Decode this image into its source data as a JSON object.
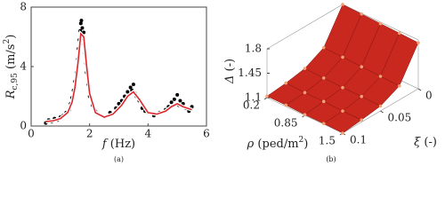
{
  "chart_data": [
    {
      "type": "scatter_line",
      "caption": "(a)",
      "xlabel": [
        {
          "text": "f",
          "style": "italic"
        },
        {
          "text": " (Hz)",
          "style": "normal"
        }
      ],
      "ylabel": [
        {
          "text": "R",
          "style": "italic"
        },
        {
          "text": "c,95",
          "style": "sub"
        },
        {
          "text": " (m/s",
          "style": "normal"
        },
        {
          "text": "2",
          "style": "sup"
        },
        {
          "text": ")",
          "style": "normal"
        }
      ],
      "xlim": [
        0,
        6
      ],
      "xticks": [
        0,
        2,
        4,
        6
      ],
      "ylim": [
        0,
        8
      ],
      "yticks": [
        0,
        4,
        8
      ],
      "points": {
        "color": "#000000",
        "x": [
          0.5,
          0.6,
          0.7,
          0.8,
          0.9,
          1.0,
          1.1,
          1.2,
          1.3,
          1.35,
          1.4,
          1.45,
          1.5,
          1.55,
          1.6,
          1.62,
          1.65,
          1.68,
          1.7,
          1.72,
          1.75,
          1.78,
          1.8,
          1.82,
          1.85,
          1.88,
          1.9,
          1.95,
          2.0,
          2.1,
          2.2,
          2.3,
          2.5,
          2.7,
          2.9,
          3.0,
          3.1,
          3.2,
          3.3,
          3.4,
          3.45,
          3.5,
          3.55,
          3.6,
          3.7,
          3.8,
          3.9,
          4.0,
          4.2,
          4.4,
          4.6,
          4.7,
          4.8,
          4.9,
          5.0,
          5.05,
          5.1,
          5.2,
          5.3,
          5.4,
          5.5
        ],
        "y": [
          0.2,
          0.4,
          0.3,
          0.5,
          0.4,
          0.6,
          0.7,
          0.9,
          1.1,
          1.5,
          1.9,
          2.4,
          3.0,
          3.6,
          4.5,
          5.2,
          5.8,
          6.4,
          6.9,
          7.1,
          6.6,
          5.9,
          6.3,
          5.5,
          4.9,
          4.2,
          3.6,
          2.8,
          2.0,
          1.4,
          1.0,
          0.8,
          0.6,
          0.9,
          1.2,
          1.5,
          1.7,
          2.0,
          2.3,
          2.6,
          2.4,
          2.8,
          2.2,
          2.0,
          1.7,
          1.2,
          1.0,
          0.9,
          0.7,
          0.9,
          1.1,
          1.3,
          1.6,
          1.8,
          2.1,
          1.4,
          1.7,
          1.5,
          1.2,
          1.0,
          1.3
        ]
      },
      "line": {
        "color": "#d8282e",
        "x": [
          0.5,
          0.75,
          1.0,
          1.25,
          1.4,
          1.5,
          1.6,
          1.7,
          1.8,
          1.9,
          2.0,
          2.2,
          2.5,
          2.8,
          3.1,
          3.3,
          3.5,
          3.7,
          4.0,
          4.3,
          4.6,
          4.8,
          5.0,
          5.2,
          5.5
        ],
        "y": [
          0.3,
          0.35,
          0.5,
          0.9,
          1.6,
          2.6,
          4.2,
          6.2,
          6.0,
          4.0,
          2.2,
          0.9,
          0.6,
          0.8,
          1.4,
          2.0,
          2.3,
          1.8,
          0.9,
          0.8,
          1.0,
          1.3,
          1.5,
          1.3,
          1.1
        ]
      }
    },
    {
      "type": "surface",
      "caption": "(b)",
      "xlabel": [
        {
          "text": "ρ",
          "style": "italic"
        },
        {
          "text": " (ped/m",
          "style": "normal"
        },
        {
          "text": "2",
          "style": "sup"
        },
        {
          "text": ")",
          "style": "normal"
        }
      ],
      "ylabel": [
        {
          "text": "ξ",
          "style": "italic"
        },
        {
          "text": " (-)",
          "style": "normal"
        }
      ],
      "zlabel": [
        {
          "text": "Δ",
          "style": "italic"
        },
        {
          "text": " (-)",
          "style": "normal"
        }
      ],
      "xlim": [
        0.2,
        1.5
      ],
      "xticks": [
        0.2,
        0.85,
        1.5
      ],
      "ylim": [
        0,
        0.1
      ],
      "yticks": [
        0,
        0.05,
        0.1
      ],
      "zlim": [
        1.1,
        1.8
      ],
      "zticks": [
        1.1,
        1.45,
        1.8
      ],
      "color": "#c8281e",
      "point_color": "#f2a274",
      "x": [
        0.2,
        0.525,
        0.85,
        1.175,
        1.5
      ],
      "y": [
        0,
        0.025,
        0.05,
        0.075,
        0.1
      ],
      "z": [
        [
          1.8,
          1.34,
          1.2,
          1.15,
          1.12
        ],
        [
          1.79,
          1.33,
          1.19,
          1.14,
          1.12
        ],
        [
          1.78,
          1.32,
          1.18,
          1.14,
          1.11
        ],
        [
          1.77,
          1.31,
          1.18,
          1.13,
          1.11
        ],
        [
          1.76,
          1.3,
          1.17,
          1.13,
          1.1
        ]
      ]
    }
  ]
}
